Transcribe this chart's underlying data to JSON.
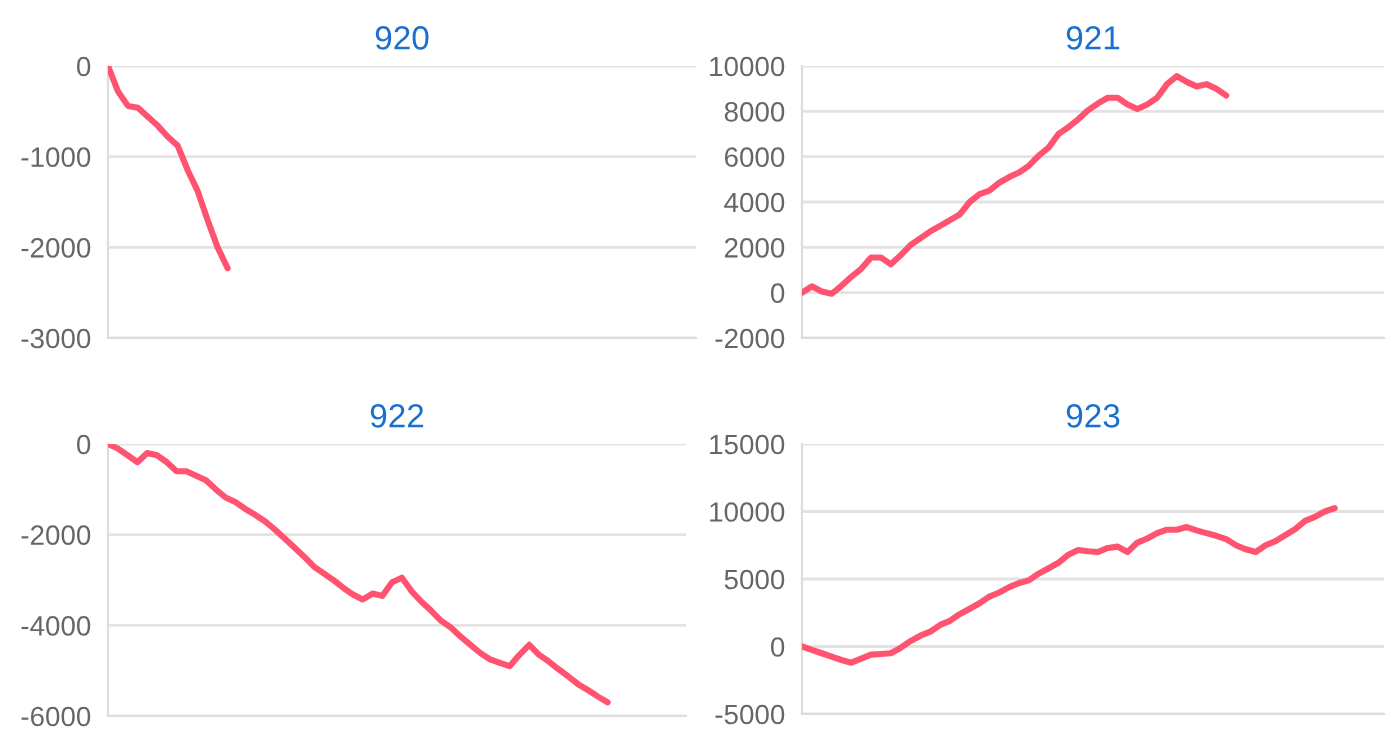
{
  "chart_data": [
    {
      "type": "line",
      "title": "920",
      "categories": [
        null,
        null,
        null,
        null,
        null,
        null,
        null,
        null,
        null,
        null,
        null,
        null,
        null,
        null,
        null,
        null,
        null,
        null,
        null,
        null,
        null,
        null,
        null,
        null,
        null,
        null,
        null,
        null,
        null,
        null,
        null,
        null,
        null,
        null,
        null,
        null,
        null,
        null,
        null,
        null,
        null,
        null,
        null,
        null,
        null,
        null,
        null,
        null,
        null,
        null,
        null,
        null,
        null,
        null,
        null,
        null,
        null,
        null,
        null,
        null
      ],
      "series": [
        {
          "color": "#ff5370",
          "values": [
            0,
            -280,
            -440,
            -460,
            -560,
            -660,
            -780,
            -880,
            -1150,
            -1380,
            -1700,
            -2000,
            -2230,
            null,
            null,
            null,
            null,
            null,
            null,
            null,
            null,
            null,
            null,
            null,
            null,
            null,
            null,
            null,
            null,
            null,
            null,
            null,
            null,
            null,
            null,
            null,
            null,
            null,
            null,
            null,
            null,
            null,
            null,
            null,
            null,
            null,
            null,
            null,
            null,
            null,
            null,
            null,
            null,
            null,
            null,
            null,
            null,
            null,
            null,
            null
          ]
        }
      ],
      "ylim": [
        -3000,
        0
      ],
      "yticks": [
        -3000,
        -2000,
        -1000,
        0
      ],
      "grid": "y",
      "tick_labels": "y"
    },
    {
      "type": "line",
      "title": "921",
      "categories": [
        null,
        null,
        null,
        null,
        null,
        null,
        null,
        null,
        null,
        null,
        null,
        null,
        null,
        null,
        null,
        null,
        null,
        null,
        null,
        null,
        null,
        null,
        null,
        null,
        null,
        null,
        null,
        null,
        null,
        null,
        null,
        null,
        null,
        null,
        null,
        null,
        null,
        null,
        null,
        null,
        null,
        null,
        null,
        null,
        null,
        null,
        null,
        null,
        null,
        null,
        null,
        null,
        null,
        null,
        null,
        null,
        null,
        null,
        null,
        null
      ],
      "series": [
        {
          "color": "#ff5370",
          "values": [
            0,
            280,
            50,
            -50,
            300,
            700,
            1050,
            1550,
            1550,
            1250,
            1650,
            2100,
            2400,
            2700,
            2950,
            3200,
            3450,
            4000,
            4350,
            4500,
            4850,
            5100,
            5300,
            5600,
            6050,
            6400,
            7000,
            7300,
            7650,
            8050,
            8350,
            8600,
            8600,
            8300,
            8100,
            8300,
            8600,
            9200,
            9550,
            9300,
            9100,
            9200,
            9000,
            8700,
            null,
            null,
            null,
            null,
            null,
            null,
            null,
            null,
            null,
            null,
            null,
            null,
            null,
            null,
            null,
            null
          ]
        }
      ],
      "ylim": [
        -2000,
        10000
      ],
      "yticks": [
        -2000,
        0,
        2000,
        4000,
        6000,
        8000,
        10000
      ],
      "grid": "y",
      "tick_labels": "y"
    },
    {
      "type": "line",
      "title": "922",
      "categories": [
        null,
        null,
        null,
        null,
        null,
        null,
        null,
        null,
        null,
        null,
        null,
        null,
        null,
        null,
        null,
        null,
        null,
        null,
        null,
        null,
        null,
        null,
        null,
        null,
        null,
        null,
        null,
        null,
        null,
        null,
        null,
        null,
        null,
        null,
        null,
        null,
        null,
        null,
        null,
        null,
        null,
        null,
        null,
        null,
        null,
        null,
        null,
        null,
        null,
        null,
        null,
        null,
        null,
        null,
        null,
        null,
        null,
        null,
        null,
        null
      ],
      "series": [
        {
          "color": "#ff5370",
          "values": [
            0,
            -100,
            -250,
            -400,
            -200,
            -250,
            -400,
            -600,
            -600,
            -700,
            -800,
            -1000,
            -1180,
            -1280,
            -1430,
            -1560,
            -1700,
            -1880,
            -2080,
            -2280,
            -2480,
            -2700,
            -2850,
            -3000,
            -3170,
            -3320,
            -3430,
            -3300,
            -3350,
            -3050,
            -2950,
            -3250,
            -3480,
            -3680,
            -3900,
            -4050,
            -4250,
            -4430,
            -4610,
            -4750,
            -4830,
            -4900,
            -4650,
            -4430,
            -4650,
            -4800,
            -4970,
            -5130,
            -5300,
            -5430,
            -5570,
            -5700,
            null,
            null,
            null,
            null,
            null,
            null,
            null,
            null
          ]
        }
      ],
      "ylim": [
        -6000,
        0
      ],
      "yticks": [
        -6000,
        -4000,
        -2000,
        0
      ],
      "grid": "y",
      "tick_labels": "y"
    },
    {
      "type": "line",
      "title": "923",
      "categories": [
        null,
        null,
        null,
        null,
        null,
        null,
        null,
        null,
        null,
        null,
        null,
        null,
        null,
        null,
        null,
        null,
        null,
        null,
        null,
        null,
        null,
        null,
        null,
        null,
        null,
        null,
        null,
        null,
        null,
        null,
        null,
        null,
        null,
        null,
        null,
        null,
        null,
        null,
        null,
        null,
        null,
        null,
        null,
        null,
        null,
        null,
        null,
        null,
        null,
        null,
        null,
        null,
        null,
        null,
        null,
        null,
        null,
        null,
        null,
        null
      ],
      "series": [
        {
          "color": "#ff5370",
          "values": [
            0,
            -250,
            -500,
            -750,
            -1000,
            -1200,
            -900,
            -600,
            -550,
            -500,
            -100,
            400,
            800,
            1100,
            1600,
            1900,
            2400,
            2800,
            3200,
            3700,
            4000,
            4400,
            4700,
            4900,
            5400,
            5800,
            6200,
            6800,
            7150,
            7050,
            7000,
            7300,
            7400,
            7000,
            7700,
            8000,
            8400,
            8650,
            8650,
            8850,
            8600,
            8400,
            8200,
            7950,
            7500,
            7200,
            7000,
            7500,
            7800,
            8250,
            8700,
            9300,
            9600,
            10000,
            10250,
            null,
            null,
            null,
            null,
            null
          ]
        }
      ],
      "ylim": [
        -5000,
        15000
      ],
      "yticks": [
        -5000,
        0,
        5000,
        10000,
        15000
      ],
      "grid": "y",
      "tick_labels": "y"
    }
  ]
}
